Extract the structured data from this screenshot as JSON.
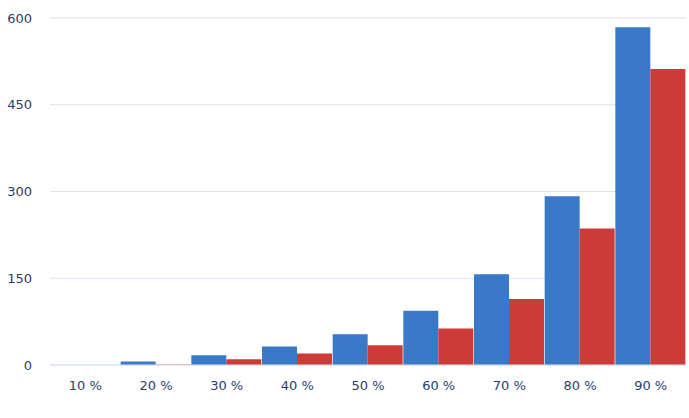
{
  "chart_data": {
    "type": "bar",
    "categories": [
      "10 %",
      "20 %",
      "30 %",
      "40 %",
      "50 %",
      "60 %",
      "70 %",
      "80 %",
      "90 %"
    ],
    "series": [
      {
        "color": "#3a78c8",
        "values": [
          0,
          6,
          17,
          32,
          53,
          94,
          157,
          292,
          584
        ]
      },
      {
        "color": "#cc3b36",
        "values": [
          0,
          1,
          10,
          20,
          34,
          63,
          114,
          236,
          512
        ]
      }
    ],
    "ylim": [
      0,
      600
    ],
    "yticks": [
      0,
      150,
      300,
      450,
      600
    ],
    "grid": true
  }
}
